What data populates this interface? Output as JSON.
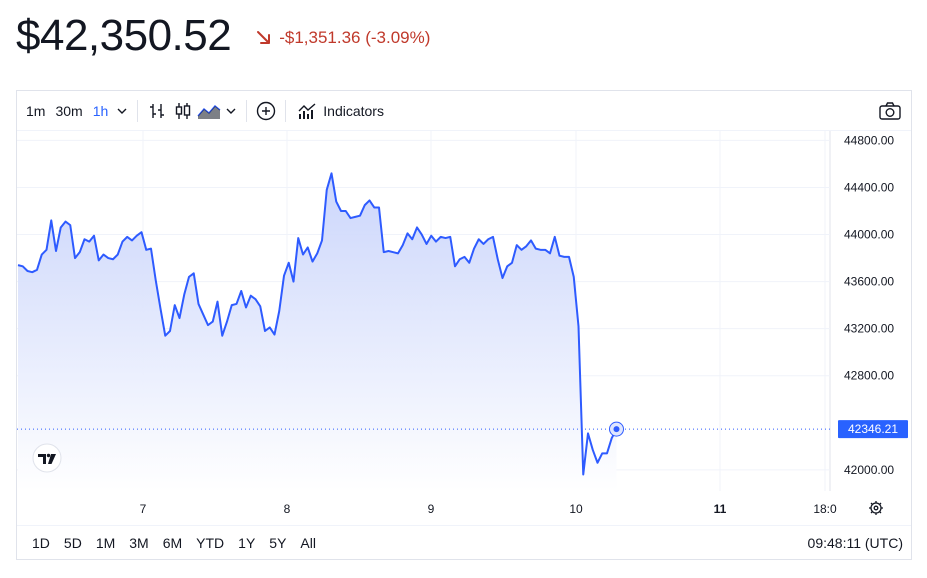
{
  "header": {
    "price": "$42,350.52",
    "change": "-$1,351.36 (-3.09%)",
    "change_color": "#c0392b"
  },
  "toolbar": {
    "intervals": [
      "1m",
      "30m",
      "1h"
    ],
    "active_interval": "1h",
    "indicators_label": "Indicators"
  },
  "bottom": {
    "ranges": [
      "1D",
      "5D",
      "1M",
      "3M",
      "6M",
      "YTD",
      "1Y",
      "5Y",
      "All"
    ],
    "clock": "09:48:11 (UTC)"
  },
  "colors": {
    "line": "#2e5bff",
    "area_top": "#c9d4fb",
    "area_bottom": "#ffffff",
    "label_bg": "#2962ff",
    "grid": "#f0f3fa"
  },
  "chart_data": {
    "type": "area",
    "ylim": [
      41820,
      44880
    ],
    "y_ticks": [
      "44800.00",
      "44400.00",
      "44000.00",
      "43600.00",
      "43200.00",
      "42800.00",
      "42000.00"
    ],
    "x_ticks": [
      "7",
      "8",
      "9",
      "10",
      "11",
      "18:0"
    ],
    "x_tick_bold": "11",
    "last_value_label": "42346.21",
    "grid": true,
    "series": [
      {
        "values": [
          43740,
          43730,
          43690,
          43680,
          43700,
          43830,
          43870,
          44120,
          43860,
          44060,
          44110,
          44080,
          43800,
          43850,
          43960,
          43940,
          43990,
          43780,
          43830,
          43800,
          43790,
          43830,
          43940,
          43980,
          43950,
          43990,
          44020,
          43870,
          43880,
          43610,
          43370,
          43140,
          43180,
          43400,
          43290,
          43490,
          43640,
          43670,
          43410,
          43320,
          43230,
          43260,
          43430,
          43140,
          43260,
          43400,
          43410,
          43520,
          43380,
          43480,
          43450,
          43390,
          43180,
          43210,
          43150,
          43350,
          43650,
          43760,
          43600,
          43970,
          43830,
          43890,
          43770,
          43840,
          43950,
          44380,
          44520,
          44280,
          44200,
          44200,
          44140,
          44150,
          44160,
          44250,
          44290,
          44230,
          44230,
          43850,
          43860,
          43850,
          43840,
          43910,
          44010,
          43960,
          44060,
          44000,
          43920,
          43990,
          43940,
          43980,
          43970,
          43980,
          43730,
          43790,
          43810,
          43760,
          43880,
          43960,
          43920,
          43960,
          43980,
          43790,
          43630,
          43730,
          43760,
          43910,
          43870,
          43900,
          43950,
          43880,
          43870,
          43870,
          43840,
          43980,
          43820,
          43810,
          43810,
          43640,
          43220,
          41960,
          42310,
          42170,
          42060,
          42140,
          42140,
          42270,
          42346
        ]
      }
    ]
  }
}
